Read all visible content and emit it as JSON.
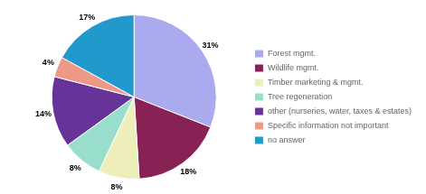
{
  "chart_data": {
    "type": "pie",
    "categories": [
      "Forest mgmt.",
      "Wildlife mgmt.",
      "Timber marketing & mgmt.",
      "Tree regeneration",
      "other (nurseries, water, taxes & estates)",
      "Specific information not important",
      "no answer"
    ],
    "values": [
      31,
      18,
      8,
      8,
      14,
      4,
      17
    ],
    "value_labels": [
      "31%",
      "18%",
      "8%",
      "8%",
      "14%",
      "4%",
      "17%"
    ],
    "colors": [
      "#aaaaee",
      "#882255",
      "#eeeebb",
      "#99ddcc",
      "#663399",
      "#ee9988",
      "#2299cc"
    ],
    "data_labels": true,
    "legend": "right"
  }
}
